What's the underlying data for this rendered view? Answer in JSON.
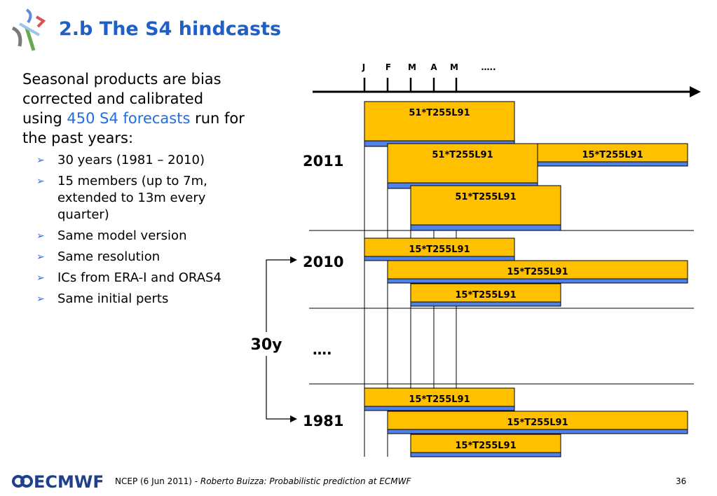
{
  "slide": {
    "title": "2.b The S4 hindcasts",
    "intro_1": "Seasonal products are bias corrected and calibrated using ",
    "intro_highlight": "450 S4 forecasts",
    "intro_2": " run for the past years:",
    "bullets": [
      "30 years (1981 – 2010)",
      "15 members (up to 7m, extended to 13m every quarter)",
      "Same model version",
      "Same resolution",
      "ICs from ERA-I and ORAS4",
      "Same initial perts"
    ]
  },
  "diagram": {
    "months": [
      "J",
      "F",
      "M",
      "A",
      "M",
      "….."
    ],
    "years": [
      "2011",
      "2010",
      "1981"
    ],
    "span_label": "30y",
    "ellipsis": "….",
    "bars": [
      {
        "label": "51*T255L91"
      },
      {
        "label": "51*T255L91"
      },
      {
        "label": "15*T255L91"
      },
      {
        "label": "51*T255L91"
      },
      {
        "label": "15*T255L91"
      },
      {
        "label": "15*T255L91"
      },
      {
        "label": "15*T255L91"
      },
      {
        "label": "15*T255L91"
      },
      {
        "label": "15*T255L91"
      },
      {
        "label": "15*T255L91"
      }
    ],
    "colors": {
      "bar": "#ffc000",
      "bar_base": "#4f81e8",
      "title": "#1f5fc8"
    }
  },
  "footer": {
    "logo": "ECMWF",
    "text_plain": "NCEP (6 Jun 2011) - ",
    "text_italic": "Roberto Buizza: Probabilistic prediction at ECMWF",
    "page": "36"
  }
}
